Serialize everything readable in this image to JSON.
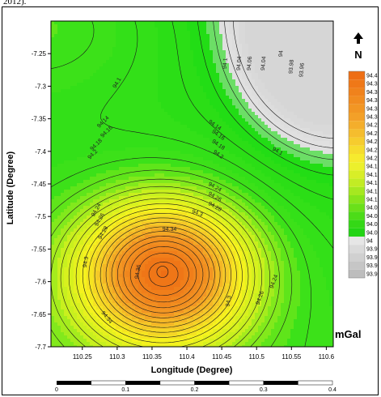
{
  "header_fragment": "2012).",
  "map": {
    "xlabel": "Longitude (Degree)",
    "ylabel": "Latitude (Degree)",
    "x_ticks": [
      "110.25",
      "110.3",
      "110.35",
      "110.4",
      "110.45",
      "110.5",
      "110.55",
      "110.6"
    ],
    "y_ticks": [
      "-7.25",
      "-7.3",
      "-7.35",
      "-7.4",
      "-7.45",
      "-7.5",
      "-7.55",
      "-7.6",
      "-7.65",
      "-7.7"
    ],
    "xlim": [
      110.205,
      110.61
    ],
    "ylim": [
      -7.7,
      -7.2
    ],
    "contour_labels": [
      {
        "text": "94.1",
        "lon": 110.3,
        "lat": -7.295,
        "rot": -60
      },
      {
        "text": "94.1",
        "lon": 110.455,
        "lat": -7.265,
        "rot": -85
      },
      {
        "text": "94.04",
        "lon": 110.475,
        "lat": -7.265,
        "rot": -85
      },
      {
        "text": "94.06",
        "lon": 110.49,
        "lat": -7.265,
        "rot": -85
      },
      {
        "text": "94.04",
        "lon": 110.51,
        "lat": -7.265,
        "rot": -85
      },
      {
        "text": "94",
        "lon": 110.535,
        "lat": -7.25,
        "rot": -85
      },
      {
        "text": "93.98",
        "lon": 110.55,
        "lat": -7.27,
        "rot": -85
      },
      {
        "text": "93.96",
        "lon": 110.565,
        "lat": -7.275,
        "rot": -85
      },
      {
        "text": "94.14",
        "lon": 110.28,
        "lat": -7.355,
        "rot": -45
      },
      {
        "text": "94.16",
        "lon": 110.285,
        "lat": -7.37,
        "rot": -45
      },
      {
        "text": "94.18",
        "lon": 110.27,
        "lat": -7.39,
        "rot": -45
      },
      {
        "text": "94.2",
        "lon": 110.265,
        "lat": -7.405,
        "rot": -45
      },
      {
        "text": "94.14",
        "lon": 110.44,
        "lat": -7.36,
        "rot": 35
      },
      {
        "text": "94.16",
        "lon": 110.445,
        "lat": -7.375,
        "rot": 35
      },
      {
        "text": "94.18",
        "lon": 110.445,
        "lat": -7.39,
        "rot": 35
      },
      {
        "text": "94.2",
        "lon": 110.445,
        "lat": -7.405,
        "rot": 35
      },
      {
        "text": "94.1",
        "lon": 110.53,
        "lat": -7.4,
        "rot": 30
      },
      {
        "text": "94.24",
        "lon": 110.27,
        "lat": -7.49,
        "rot": -60
      },
      {
        "text": "94.26",
        "lon": 110.275,
        "lat": -7.505,
        "rot": -60
      },
      {
        "text": "94.28",
        "lon": 110.28,
        "lat": -7.525,
        "rot": -60
      },
      {
        "text": "94.24",
        "lon": 110.44,
        "lat": -7.455,
        "rot": 30
      },
      {
        "text": "94.26",
        "lon": 110.44,
        "lat": -7.47,
        "rot": 30
      },
      {
        "text": "94.28",
        "lon": 110.44,
        "lat": -7.485,
        "rot": 30
      },
      {
        "text": "94.3",
        "lon": 110.415,
        "lat": -7.495,
        "rot": 20
      },
      {
        "text": "94.34",
        "lon": 110.375,
        "lat": -7.52,
        "rot": 0
      },
      {
        "text": "94.3",
        "lon": 110.255,
        "lat": -7.57,
        "rot": -80
      },
      {
        "text": "94.36",
        "lon": 110.33,
        "lat": -7.585,
        "rot": -80
      },
      {
        "text": "94.34",
        "lon": 110.285,
        "lat": -7.655,
        "rot": 50
      },
      {
        "text": "94.3",
        "lon": 110.46,
        "lat": -7.63,
        "rot": -80
      },
      {
        "text": "94.26",
        "lon": 110.505,
        "lat": -7.625,
        "rot": -70
      },
      {
        "text": "94.24",
        "lon": 110.525,
        "lat": -7.6,
        "rot": -70
      }
    ]
  },
  "legend": {
    "labels": [
      "94.4",
      "94.3",
      "94.3",
      "94.3",
      "94.3",
      "94.3",
      "94.2",
      "94.2",
      "94.2",
      "94.2",
      "94.2",
      "94.1",
      "94.1",
      "94.1",
      "94.1",
      "94.1",
      "94.0",
      "94.0",
      "94.0",
      "94.0",
      "94",
      "93.9",
      "93.9",
      "93.9",
      "93.9"
    ],
    "unit": "mGal"
  },
  "scalebar": {
    "labels": [
      "0",
      "0.1",
      "0.2",
      "0.3",
      "0.4"
    ]
  },
  "north_label": "N",
  "colors": {
    "orange_high": "#f07a1e",
    "yellow_mid": "#f4f21c",
    "green_low": "#22e01a",
    "grey_lowest": "#dcdcdc"
  }
}
